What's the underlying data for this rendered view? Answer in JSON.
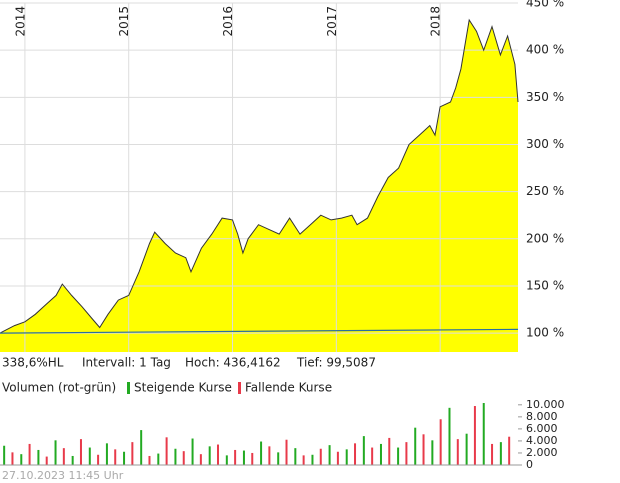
{
  "chart_data": [
    {
      "type": "area",
      "info": [
        "338,6%HL",
        "Intervall: 1 Tag",
        "Hoch: 436,4162",
        "Tief: 99,5087"
      ],
      "x": [
        2013.76,
        2013.9,
        2014.0,
        2014.1,
        2014.2,
        2014.3,
        2014.36,
        2014.45,
        2014.55,
        2014.65,
        2014.72,
        2014.8,
        2014.9,
        2015.0,
        2015.1,
        2015.2,
        2015.25,
        2015.35,
        2015.45,
        2015.55,
        2015.6,
        2015.7,
        2015.8,
        2015.9,
        2016.0,
        2016.05,
        2016.1,
        2016.15,
        2016.25,
        2016.35,
        2016.45,
        2016.55,
        2016.65,
        2016.75,
        2016.85,
        2016.95,
        2017.05,
        2017.15,
        2017.2,
        2017.3,
        2017.4,
        2017.5,
        2017.6,
        2017.7,
        2017.8,
        2017.9,
        2017.95,
        2018.0,
        2018.1,
        2018.15,
        2018.2,
        2018.28,
        2018.35,
        2018.42,
        2018.5,
        2018.58,
        2018.65,
        2018.72,
        2018.75
      ],
      "series": [
        {
          "color": "#333333",
          "fill": "#ffff00",
          "values": [
            100,
            108,
            112,
            120,
            130,
            140,
            152,
            140,
            128,
            115,
            106,
            120,
            135,
            140,
            165,
            195,
            207,
            195,
            185,
            180,
            165,
            190,
            205,
            222,
            220,
            205,
            185,
            200,
            215,
            210,
            205,
            222,
            205,
            215,
            225,
            220,
            222,
            225,
            215,
            222,
            245,
            265,
            275,
            300,
            310,
            320,
            310,
            340,
            345,
            360,
            380,
            432,
            420,
            400,
            425,
            395,
            415,
            385,
            345
          ]
        },
        {
          "color": "#2a6f9e",
          "x": [
            2013.76,
            2018.75
          ],
          "values": [
            100,
            104
          ]
        }
      ],
      "xlim": [
        2013.76,
        2018.75
      ],
      "xticks": [
        2014,
        2015,
        2016,
        2017,
        2018
      ],
      "ylim": [
        80,
        450
      ],
      "yticks": [
        {
          "value": 100,
          "label": "100 %"
        },
        {
          "value": 150,
          "label": "150 %"
        },
        {
          "value": 200,
          "label": "200 %"
        },
        {
          "value": 250,
          "label": "250 %"
        },
        {
          "value": 300,
          "label": "300 %"
        },
        {
          "value": 350,
          "label": "350 %"
        },
        {
          "value": 400,
          "label": "400 %"
        },
        {
          "value": 450,
          "label": "450 %"
        }
      ],
      "grid": true
    },
    {
      "type": "bar",
      "title": "Volumen (rot-grün)",
      "series": [
        {
          "name": "Steigende Kurse",
          "color": "#22aa22",
          "x": [
            2013.8,
            2013.965,
            2014.13,
            2014.295,
            2014.46,
            2014.625,
            2014.79,
            2014.955,
            2015.12,
            2015.285,
            2015.45,
            2015.615,
            2015.78,
            2015.945,
            2016.11,
            2016.275,
            2016.44,
            2016.605,
            2016.77,
            2016.935,
            2017.1,
            2017.265,
            2017.43,
            2017.595,
            2017.76,
            2017.925,
            2018.09,
            2018.255,
            2018.42,
            2018.585
          ],
          "values": [
            3200,
            1800,
            2500,
            4100,
            1500,
            2900,
            3600,
            2200,
            5800,
            1900,
            2700,
            4400,
            3100,
            1600,
            2400,
            3900,
            2100,
            2800,
            1700,
            3300,
            2600,
            4800,
            3500,
            2900,
            6200,
            4100,
            9500,
            5200,
            10300,
            3800
          ]
        },
        {
          "name": "Fallende Kurse",
          "color": "#e83a4a",
          "x": [
            2013.88,
            2014.045,
            2014.21,
            2014.375,
            2014.54,
            2014.705,
            2014.87,
            2015.035,
            2015.2,
            2015.365,
            2015.53,
            2015.695,
            2015.86,
            2016.025,
            2016.19,
            2016.355,
            2016.52,
            2016.685,
            2016.85,
            2017.015,
            2017.18,
            2017.345,
            2017.51,
            2017.675,
            2017.84,
            2018.005,
            2018.17,
            2018.335,
            2018.5,
            2018.665
          ],
          "values": [
            2100,
            3500,
            1400,
            2800,
            4300,
            1700,
            2600,
            3800,
            1500,
            4600,
            2300,
            1800,
            3400,
            2500,
            2000,
            3100,
            4200,
            1600,
            2700,
            2200,
            3600,
            2900,
            4500,
            3800,
            5100,
            7600,
            4300,
            9800,
            3500,
            4700
          ]
        }
      ],
      "xlim": [
        2013.76,
        2018.75
      ],
      "ylim": [
        0,
        10800
      ],
      "yticks": [
        0,
        {
          "value": 2000,
          "label": "2.000"
        },
        {
          "value": 4000,
          "label": "4.000"
        },
        {
          "value": 6000,
          "label": "6.000"
        },
        {
          "value": 8000,
          "label": "8.000"
        },
        {
          "value": 10000,
          "label": "10.000"
        }
      ],
      "footnote": "27.10.2023 11:45 Uhr"
    }
  ]
}
